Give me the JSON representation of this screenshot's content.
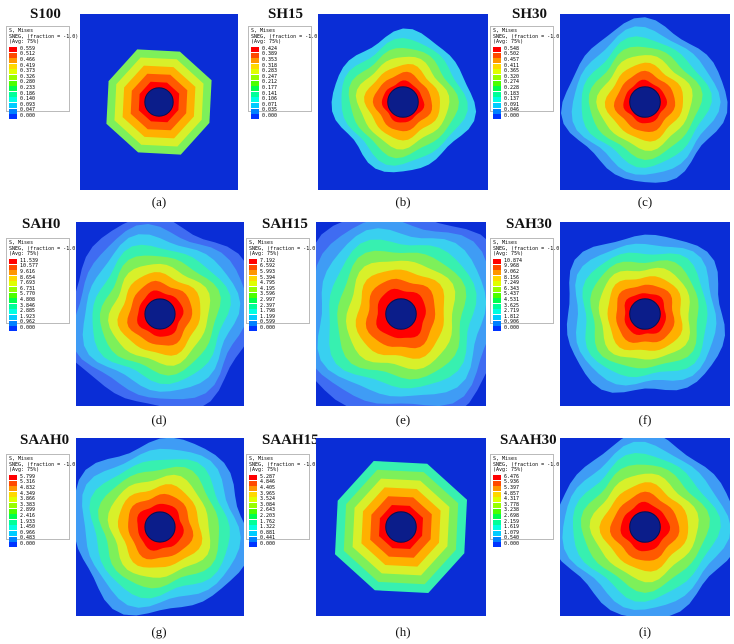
{
  "legend_colors": [
    "#ff0000",
    "#ff4a00",
    "#ff9600",
    "#ffd800",
    "#e0ff00",
    "#97ff00",
    "#4cff00",
    "#00ff4d",
    "#00ff98",
    "#00ffe2",
    "#00ccff",
    "#0081ff",
    "#0034ff",
    "#0000ff"
  ],
  "panels": [
    {
      "title": "S100",
      "caption": "(a)",
      "legend": {
        "h1": "S, Mises",
        "h2": "SNEG, (fraction = -1.0)",
        "h3": "(Avg: 75%)",
        "values": [
          "0.559",
          "0.512",
          "0.466",
          "0.419",
          "0.373",
          "0.326",
          "0.280",
          "0.233",
          "0.186",
          "0.140",
          "0.093",
          "0.047",
          "0.000"
        ]
      }
    },
    {
      "title": "SH15",
      "caption": "(b)",
      "legend": {
        "h1": "S, Mises",
        "h2": "SNEG, (fraction = -1.0)",
        "h3": "(Avg: 75%)",
        "values": [
          "0.424",
          "0.389",
          "0.353",
          "0.318",
          "0.283",
          "0.247",
          "0.212",
          "0.177",
          "0.141",
          "0.106",
          "0.071",
          "0.035",
          "0.000"
        ]
      }
    },
    {
      "title": "SH30",
      "caption": "(c)",
      "legend": {
        "h1": "S, Mises",
        "h2": "SNEG, (fraction = -1.0)",
        "h3": "(Avg: 75%)",
        "values": [
          "0.548",
          "0.502",
          "0.457",
          "0.411",
          "0.365",
          "0.320",
          "0.274",
          "0.228",
          "0.183",
          "0.137",
          "0.091",
          "0.046",
          "0.000"
        ]
      }
    },
    {
      "title": "SAH0",
      "caption": "(d)",
      "legend": {
        "h1": "S, Mises",
        "h2": "SNEG, (fraction = -1.0)",
        "h3": "(Avg: 75%)",
        "values": [
          "11.539",
          "10.577",
          "9.616",
          "8.654",
          "7.693",
          "6.731",
          "5.770",
          "4.808",
          "3.846",
          "2.885",
          "1.923",
          "0.962",
          "0.000"
        ]
      }
    },
    {
      "title": "SAH15",
      "caption": "(e)",
      "legend": {
        "h1": "S, Mises",
        "h2": "SNEG, (fraction = -1.0)",
        "h3": "(Avg: 75%)",
        "values": [
          "7.192",
          "6.592",
          "5.993",
          "5.394",
          "4.795",
          "4.195",
          "3.596",
          "2.997",
          "2.397",
          "1.798",
          "1.199",
          "0.599",
          "0.000"
        ]
      }
    },
    {
      "title": "SAH30",
      "caption": "(f)",
      "legend": {
        "h1": "S, Mises",
        "h2": "SNEG, (fraction = -1.0)",
        "h3": "(Avg: 75%)",
        "values": [
          "10.874",
          "9.968",
          "9.062",
          "8.156",
          "7.249",
          "6.343",
          "5.437",
          "4.531",
          "3.625",
          "2.719",
          "1.812",
          "0.906",
          "0.000"
        ]
      }
    },
    {
      "title": "SAAH0",
      "caption": "(g)",
      "legend": {
        "h1": "S, Mises",
        "h2": "SNEG, (fraction = -1.0)",
        "h3": "(Avg: 75%)",
        "values": [
          "5.799",
          "5.316",
          "4.832",
          "4.349",
          "3.866",
          "3.383",
          "2.899",
          "2.416",
          "1.933",
          "1.450",
          "0.966",
          "0.483",
          "0.000"
        ]
      }
    },
    {
      "title": "SAAH15",
      "caption": "(h)",
      "legend": {
        "h1": "S, Mises",
        "h2": "SNEG, (fraction = -1.0)",
        "h3": "(Avg: 75%)",
        "values": [
          "5.287",
          "4.846",
          "4.405",
          "3.965",
          "3.524",
          "3.084",
          "2.643",
          "2.203",
          "1.762",
          "1.322",
          "0.881",
          "0.441",
          "0.000"
        ]
      }
    },
    {
      "title": "SAAH30",
      "caption": "(i)",
      "legend": {
        "h1": "S, Mises",
        "h2": "SNEG, (fraction = -1.0)",
        "h3": "(Avg: 75%)",
        "values": [
          "6.476",
          "5.936",
          "5.397",
          "4.857",
          "4.317",
          "3.778",
          "3.238",
          "2.698",
          "2.159",
          "1.619",
          "1.079",
          "0.540",
          "0.000"
        ]
      }
    }
  ]
}
